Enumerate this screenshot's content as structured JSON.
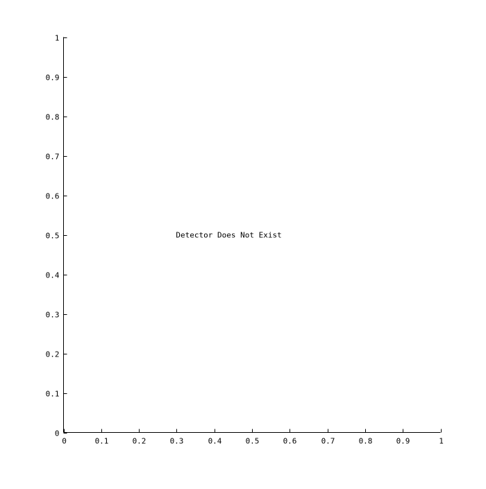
{
  "chart_data": {
    "type": "scatter",
    "title": "",
    "xlabel": "",
    "ylabel": "",
    "xlim": [
      0,
      1
    ],
    "ylim": [
      0,
      1
    ],
    "x_ticks": [
      0,
      0.1,
      0.2,
      0.3,
      0.4,
      0.5,
      0.6,
      0.7,
      0.8,
      0.9,
      1
    ],
    "x_tick_labels": [
      "0",
      "0.1",
      "0.2",
      "0.3",
      "0.4",
      "0.5",
      "0.6",
      "0.7",
      "0.8",
      "0.9",
      "1"
    ],
    "y_ticks": [
      0,
      0.1,
      0.2,
      0.3,
      0.4,
      0.5,
      0.6,
      0.7,
      0.8,
      0.9,
      1
    ],
    "y_tick_labels": [
      "0",
      "0.1",
      "0.2",
      "0.3",
      "0.4",
      "0.5",
      "0.6",
      "0.7",
      "0.8",
      "0.9",
      "1"
    ],
    "grid": false,
    "series": [],
    "annotations": [
      {
        "text": "Detector Does Not Exist",
        "x": 0.3,
        "y": 0.5
      }
    ],
    "colors": {
      "axis": "#000000",
      "text": "#000000",
      "background": "#ffffff"
    }
  }
}
